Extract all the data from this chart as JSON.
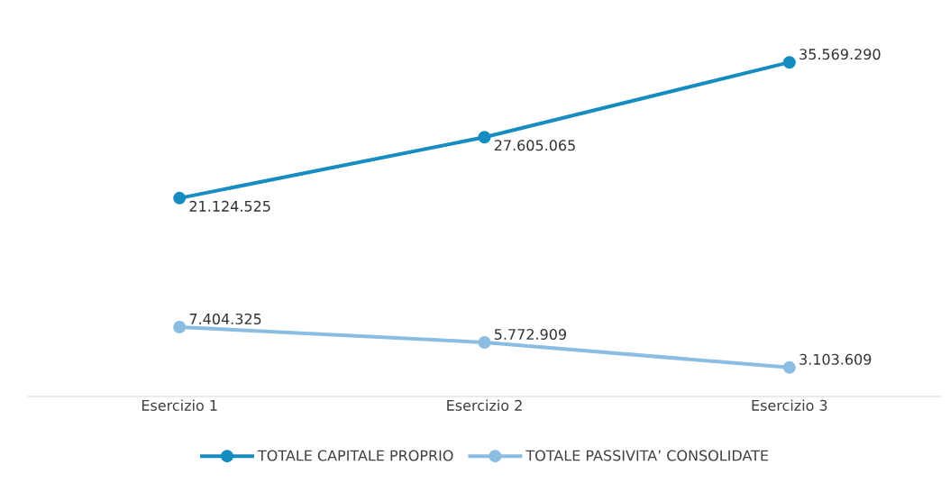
{
  "chart_data": {
    "type": "line",
    "categories": [
      "Esercizio 1",
      "Esercizio 2",
      "Esercizio 3"
    ],
    "series": [
      {
        "name": "TOTALE CAPITALE PROPRIO",
        "color": "#168cc0",
        "values": [
          21124525,
          27605065,
          35569290
        ],
        "value_labels": [
          "21.124.525",
          "27.605.065",
          "35.569.290"
        ]
      },
      {
        "name": "TOTALE PASSIVITA’ CONSOLIDATE",
        "color": "#8bbde2",
        "values": [
          7404325,
          5772909,
          3103609
        ],
        "value_labels": [
          "7.404.325",
          "5.772.909",
          "3.103.609"
        ]
      }
    ],
    "tick_labels": "x",
    "marker": "circle",
    "line_style": "solid",
    "legend": "bottom"
  }
}
